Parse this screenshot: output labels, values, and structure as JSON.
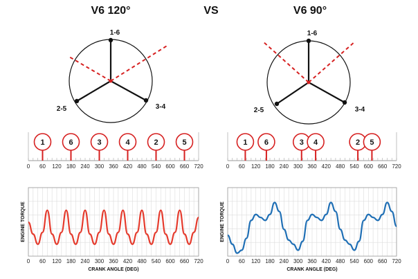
{
  "titles": {
    "left": "V6 120°",
    "vs": "VS",
    "right": "V6 90°"
  },
  "crank_diagrams": {
    "left": {
      "labels": [
        "1-6",
        "2-5",
        "3-4"
      ],
      "bank_line_color": "#d62020"
    },
    "right": {
      "labels": [
        "1-6",
        "2-5",
        "3-4"
      ],
      "bank_line_color": "#d62020"
    }
  },
  "firing_marker_color": "#d62020",
  "torque_colors": {
    "left": "#e53a2c",
    "right": "#1f6fb5"
  },
  "axis_ticks": [
    "0",
    "60",
    "120",
    "180",
    "240",
    "300",
    "360",
    "420",
    "480",
    "540",
    "600",
    "660",
    "720"
  ],
  "y_axis_label": "ENGINE TORQUE",
  "x_axis_label": "CRANK ANGLE (DEG)",
  "chart_data": [
    {
      "name": "left-firing-order",
      "type": "scatter",
      "cylinders": [
        "1",
        "6",
        "3",
        "4",
        "2",
        "5"
      ],
      "angles": [
        60,
        180,
        300,
        420,
        540,
        660
      ],
      "xlim": [
        0,
        720
      ]
    },
    {
      "name": "right-firing-order",
      "type": "scatter",
      "cylinders": [
        "1",
        "6",
        "3",
        "4",
        "2",
        "5"
      ],
      "angles": [
        75,
        165,
        315,
        375,
        555,
        615
      ],
      "xlim": [
        0,
        720
      ]
    },
    {
      "name": "left-torque",
      "type": "line",
      "xlabel": "CRANK ANGLE (DEG)",
      "ylabel": "ENGINE TORQUE",
      "xlim": [
        0,
        720
      ],
      "ylim": [
        0,
        1
      ],
      "x": [
        0,
        20,
        40,
        60,
        80,
        100,
        120,
        140,
        160,
        180,
        200,
        220,
        240,
        260,
        280,
        300,
        320,
        340,
        360,
        380,
        400,
        420,
        440,
        460,
        480,
        500,
        520,
        540,
        560,
        580,
        600,
        620,
        640,
        660,
        680,
        700,
        720
      ],
      "y": [
        0.42,
        0.22,
        0.05,
        0.25,
        0.62,
        0.22,
        0.05,
        0.25,
        0.62,
        0.22,
        0.05,
        0.25,
        0.62,
        0.22,
        0.05,
        0.25,
        0.62,
        0.22,
        0.05,
        0.25,
        0.62,
        0.22,
        0.05,
        0.25,
        0.62,
        0.22,
        0.05,
        0.25,
        0.62,
        0.22,
        0.05,
        0.25,
        0.62,
        0.22,
        0.05,
        0.25,
        0.5
      ]
    },
    {
      "name": "right-torque",
      "type": "line",
      "xlabel": "CRANK ANGLE (DEG)",
      "ylabel": "ENGINE TORQUE",
      "xlim": [
        0,
        720
      ],
      "ylim": [
        0,
        1
      ],
      "x": [
        0,
        20,
        40,
        60,
        80,
        100,
        120,
        140,
        160,
        180,
        200,
        220,
        240,
        260,
        280,
        300,
        320,
        340,
        360,
        380,
        400,
        420,
        440,
        460,
        480,
        500,
        520,
        540,
        560,
        580,
        600,
        620,
        640,
        660,
        680,
        700,
        720
      ],
      "y": [
        0.2,
        0.05,
        -0.1,
        -0.05,
        0.15,
        0.45,
        0.55,
        0.5,
        0.45,
        0.55,
        0.75,
        0.6,
        0.3,
        0.12,
        0.05,
        -0.05,
        0.1,
        0.45,
        0.55,
        0.5,
        0.45,
        0.55,
        0.75,
        0.6,
        0.3,
        0.12,
        0.05,
        -0.05,
        0.1,
        0.45,
        0.55,
        0.5,
        0.45,
        0.55,
        0.75,
        0.6,
        0.35
      ]
    }
  ]
}
